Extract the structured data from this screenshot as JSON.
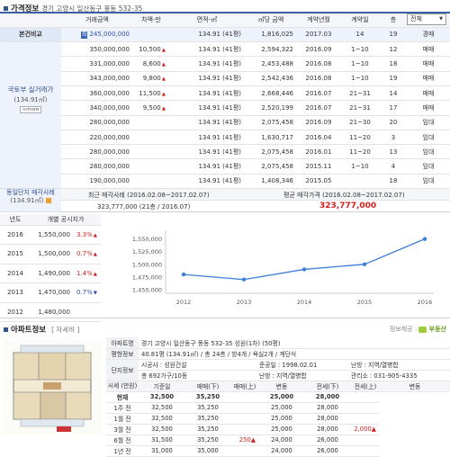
{
  "price_section": {
    "title": "가격정보",
    "address": "경기 고양시 일산동구 풍동 532-35",
    "header": [
      "거래금액",
      "차액-만",
      "면적-㎡",
      "㎡당 금액",
      "계약년월",
      "계약일",
      "층"
    ],
    "filter_label": "전체",
    "filter_icon": "chevron-down-icon",
    "compare_label": "본건비교",
    "compare_row": {
      "chip": "최",
      "amount": "245,000,000",
      "diff": "",
      "area": "134.91 (41평)",
      "unit": "1,816,025",
      "ym": "2017.03",
      "day": "14",
      "floor": "19",
      "kind": "경매"
    },
    "group_label": "국토부 실거래가",
    "group_sub": "(134.91㎡)",
    "more_label": "+more",
    "rows": [
      {
        "amount": "350,000,000",
        "diff": "10,500",
        "dir": "up",
        "area": "134.91 (41평)",
        "unit": "2,594,322",
        "ym": "2016.09",
        "day": "1~10",
        "floor": "12",
        "kind": "매매"
      },
      {
        "amount": "331,000,000",
        "diff": "8,600",
        "dir": "up",
        "area": "134.91 (41평)",
        "unit": "2,453,488",
        "ym": "2016.08",
        "day": "1~10",
        "floor": "18",
        "kind": "매매"
      },
      {
        "amount": "343,000,000",
        "diff": "9,800",
        "dir": "up",
        "area": "134.91 (41평)",
        "unit": "2,542,436",
        "ym": "2016.08",
        "day": "1~10",
        "floor": "19",
        "kind": "매매"
      },
      {
        "amount": "360,000,000",
        "diff": "11,500",
        "dir": "up",
        "area": "134.91 (41평)",
        "unit": "2,668,446",
        "ym": "2016.07",
        "day": "21~31",
        "floor": "14",
        "kind": "매매"
      },
      {
        "amount": "340,000,000",
        "diff": "9,500",
        "dir": "up",
        "area": "134.91 (41평)",
        "unit": "2,520,199",
        "ym": "2016.07",
        "day": "21~31",
        "floor": "17",
        "kind": "매매"
      },
      {
        "amount": "280,000,000",
        "diff": "",
        "dir": "",
        "area": "134.91 (41평)",
        "unit": "2,075,458",
        "ym": "2016.09",
        "day": "21~30",
        "floor": "20",
        "kind": "임대"
      },
      {
        "amount": "220,000,000",
        "diff": "",
        "dir": "",
        "area": "134.91 (41평)",
        "unit": "1,630,717",
        "ym": "2016.04",
        "day": "11~20",
        "floor": "3",
        "kind": "임대"
      },
      {
        "amount": "280,000,000",
        "diff": "",
        "dir": "",
        "area": "134.91 (41평)",
        "unit": "2,075,458",
        "ym": "2016.01",
        "day": "11~20",
        "floor": "13",
        "kind": "임대"
      },
      {
        "amount": "280,000,000",
        "diff": "",
        "dir": "",
        "area": "134.91 (41평)",
        "unit": "2,075,458",
        "ym": "2015.11",
        "day": "1~10",
        "floor": "4",
        "kind": "임대"
      },
      {
        "amount": "190,000,000",
        "diff": "",
        "dir": "",
        "area": "134.91 (41평)",
        "unit": "1,408,346",
        "ym": "2015.05",
        "day": "",
        "floor": "18",
        "kind": "임대"
      }
    ],
    "recent_label": "동일단지 매각사례",
    "recent_sub": "(134.91㎡)",
    "recent_head1": "최근 매각사례 (2016.02.08~2017.02.07)",
    "recent_head2": "평균 매각가격 (2016.02.08~2017.02.07)",
    "recent_val1": "323,777,000 (21층 / 2016.07)",
    "recent_val2": "323,777,000"
  },
  "year_table": {
    "head_year": "년도",
    "head_price": "개별 공시지가",
    "rows": [
      {
        "year": "2016",
        "price": "1,550,000",
        "rate": "3.3%",
        "dir": "up"
      },
      {
        "year": "2015",
        "price": "1,500,000",
        "rate": "0.7%",
        "dir": "up"
      },
      {
        "year": "2014",
        "price": "1,490,000",
        "rate": "1.4%",
        "dir": "up"
      },
      {
        "year": "2013",
        "price": "1,470,000",
        "rate": "0.7%",
        "dir": "down"
      },
      {
        "year": "2012",
        "price": "1,480,000",
        "rate": "",
        "dir": ""
      }
    ]
  },
  "chart_data": {
    "type": "line",
    "x": [
      "2012",
      "2013",
      "2014",
      "2015",
      "2016"
    ],
    "series": [
      {
        "values": [
          1480000,
          1470000,
          1490000,
          1500000,
          1550000
        ]
      }
    ],
    "yticks": [
      "1,450,000",
      "1,475,000",
      "1,500,000",
      "1,525,000",
      "1,550,000"
    ],
    "ylim": [
      1450000,
      1560000
    ],
    "grid": false,
    "color": "#3d7fd9"
  },
  "apt_section": {
    "title": "아파트정보",
    "detail_link": "[ 자세히 ]",
    "provider": "정보제공 :",
    "provider_brand": "부동산",
    "rows": {
      "addr_label": "아파트명",
      "addr_value": "경기 고양시 일산동구 풍동 532-35 성원(1차) (50평)",
      "plan_label": "평형정보",
      "plan_value": "40.81평 (134.91㎡) / 총 24층 / 방4개 / 욕실2개 / 계단식",
      "complex_label": "단지정보",
      "builder": "시공사 : 성원건설",
      "built": "준공일 : 1998.02.01",
      "heat": "난방 : 지역/열병합",
      "households": "총 692가구/10동",
      "heating2": "난방 : 지역/열병합",
      "office": "관리소 : 031-905-4335"
    },
    "price_label": "시세 (만원)",
    "head": [
      "기준일",
      "매매(下)",
      "매매(上)",
      "변동",
      "전세(下)",
      "전세(上)",
      "변동"
    ],
    "price_rows": [
      {
        "date": "현재",
        "s1": "32,500",
        "s2": "35,250",
        "c1": "",
        "j1": "25,000",
        "j2": "28,000",
        "c2": "",
        "bold": true
      },
      {
        "date": "1주 전",
        "s1": "32,500",
        "s2": "35,250",
        "c1": "",
        "j1": "25,000",
        "j2": "28,000",
        "c2": ""
      },
      {
        "date": "1월 전",
        "s1": "32,500",
        "s2": "35,250",
        "c1": "",
        "j1": "25,000",
        "j2": "28,000",
        "c2": ""
      },
      {
        "date": "3월 전",
        "s1": "32,500",
        "s2": "35,250",
        "c1": "",
        "j1": "25,000",
        "j2": "28,000",
        "c2": "2,000▲"
      },
      {
        "date": "6월 전",
        "s1": "31,500",
        "s2": "35,250",
        "c1": "250▲",
        "j1": "24,000",
        "j2": "26,000",
        "c2": ""
      },
      {
        "date": "1년 전",
        "s1": "31,000",
        "s2": "35,000",
        "c1": "",
        "j1": "24,000",
        "j2": "26,000",
        "c2": ""
      }
    ]
  }
}
